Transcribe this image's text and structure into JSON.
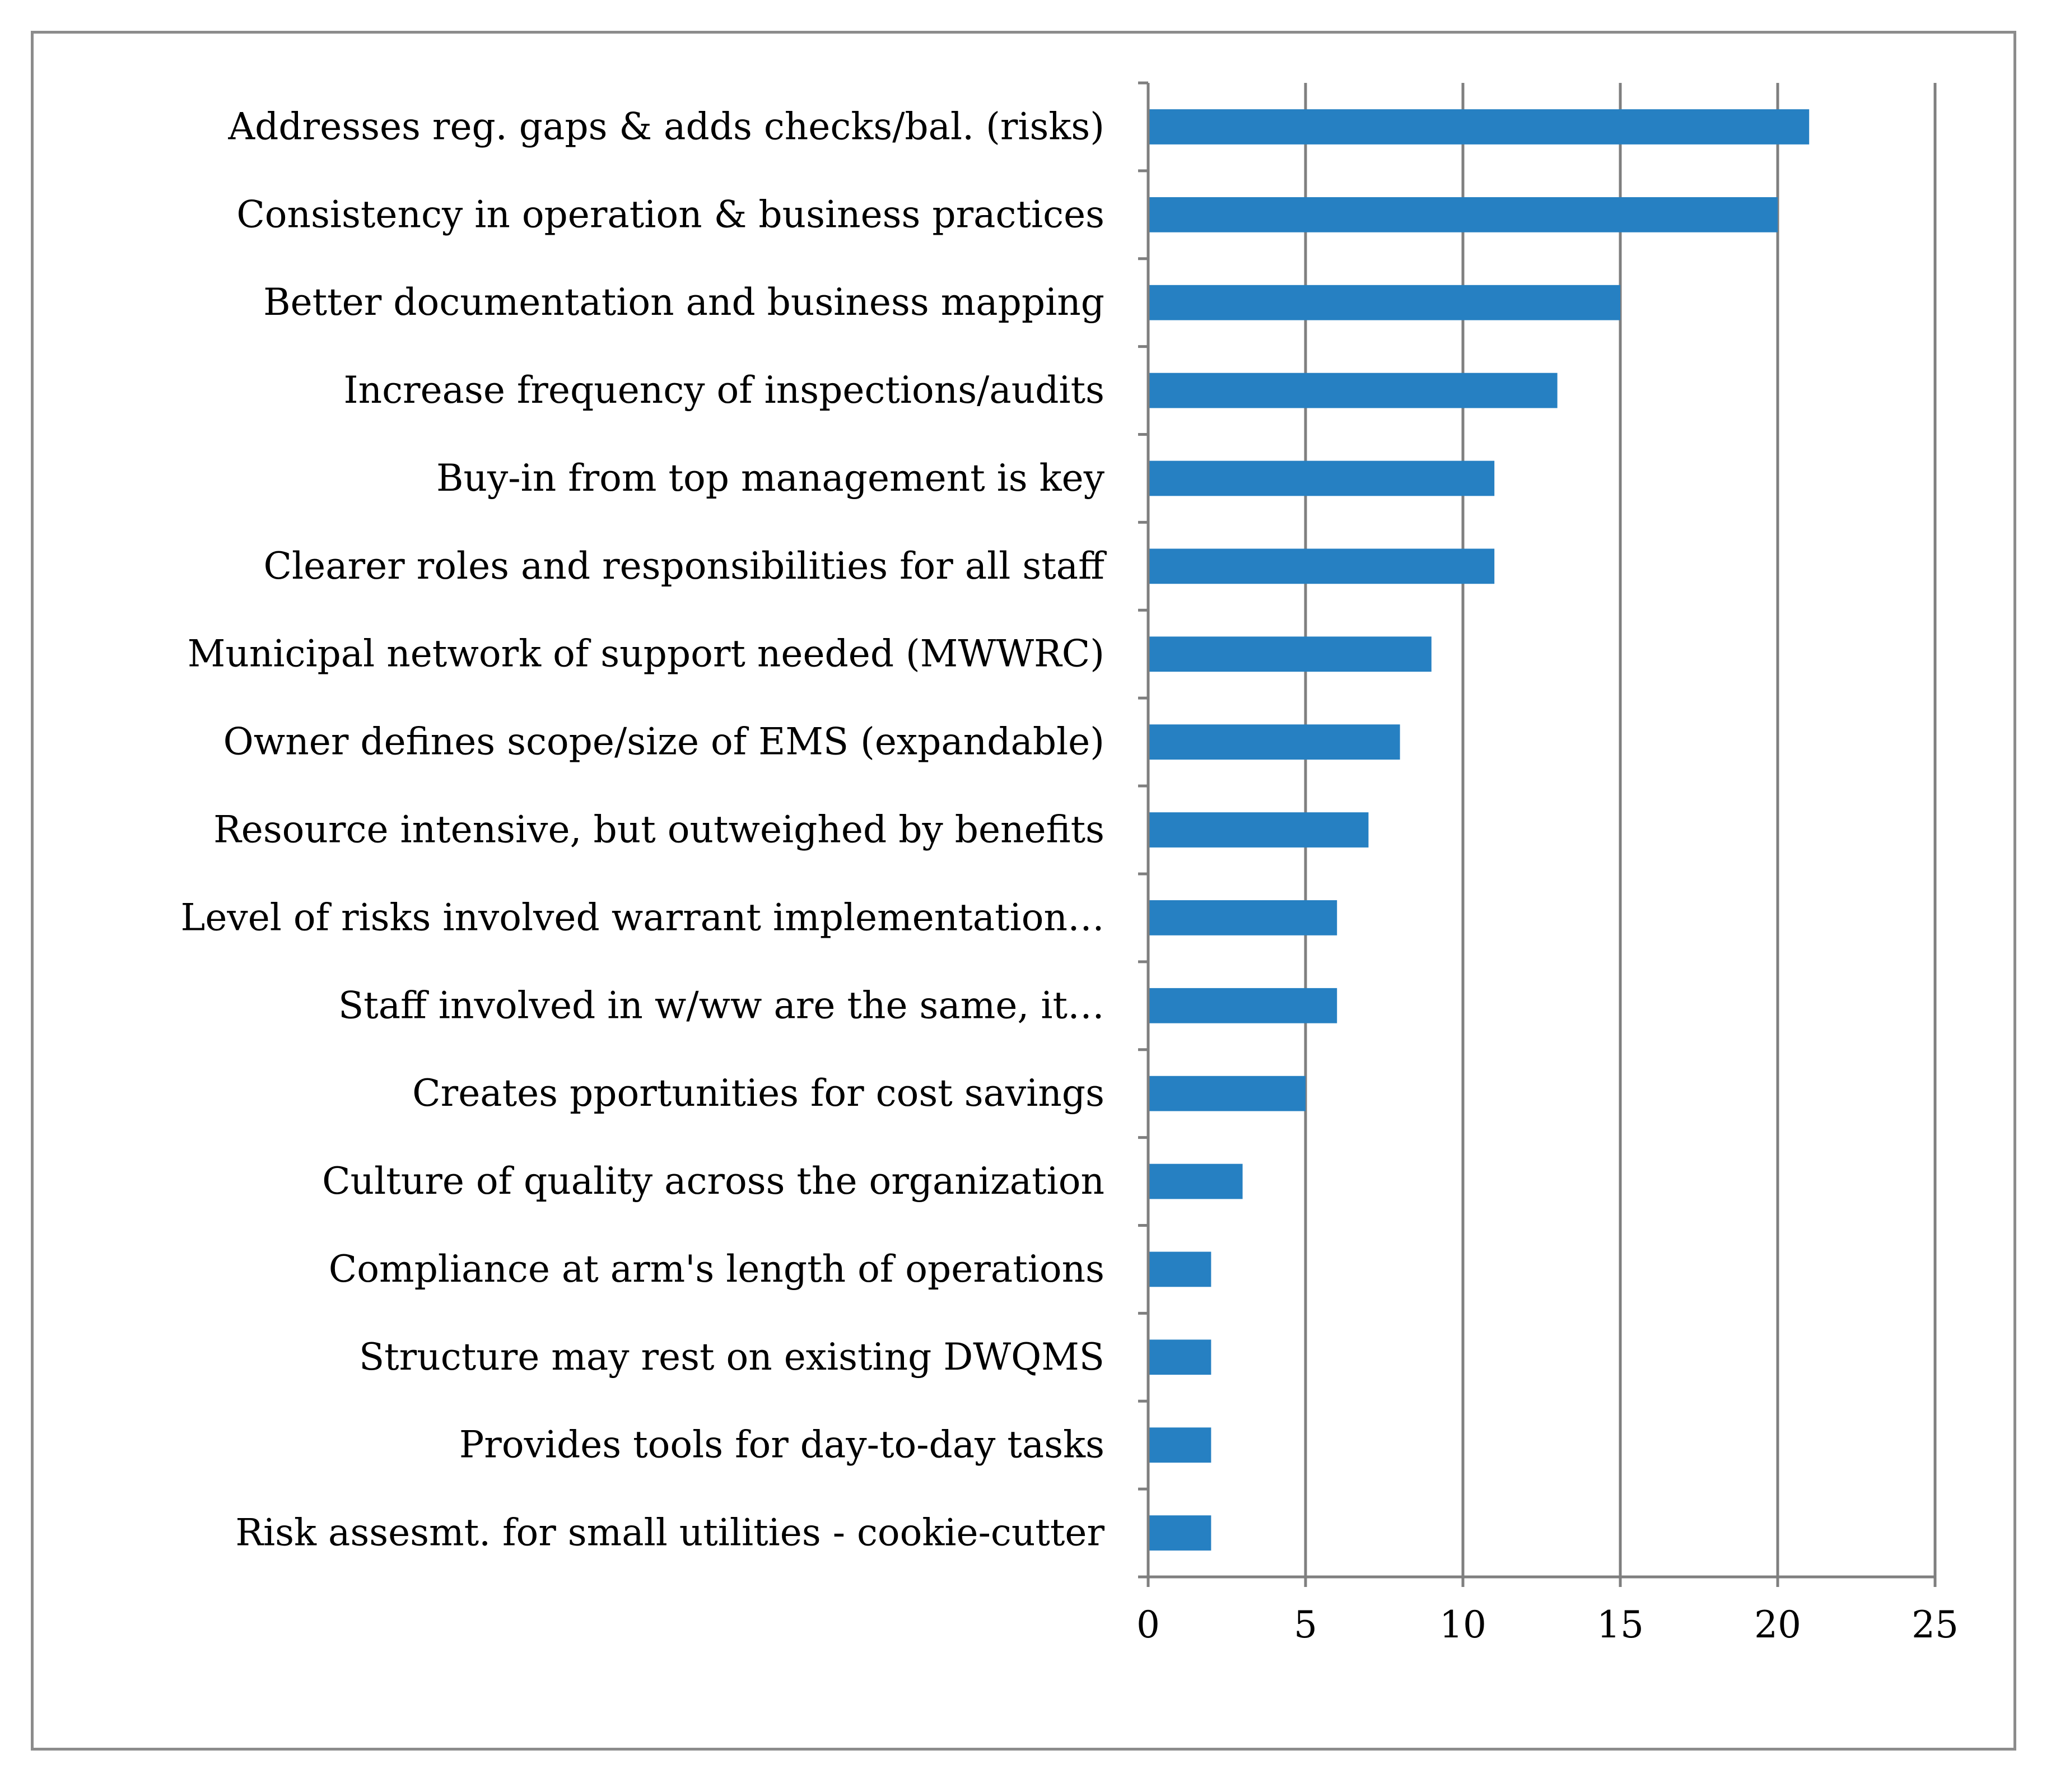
{
  "chart_data": {
    "type": "bar",
    "orientation": "horizontal",
    "title": "",
    "xlabel": "",
    "ylabel": "",
    "xlim": [
      0,
      25
    ],
    "x_ticks": [
      0,
      5,
      10,
      15,
      20,
      25
    ],
    "grid": "vertical",
    "legend": "none",
    "bar_color": "#2680c2",
    "grid_color": "#7f7f7f",
    "categories": [
      "Addresses reg. gaps & adds checks/bal. (risks)",
      "Consistency in operation & business practices",
      "Better documentation and business mapping",
      "Increase frequency of inspections/audits",
      "Buy-in from top management is key",
      "Clearer roles and responsibilities for all staff",
      "Municipal network of support needed (MWWRC)",
      "Owner defines scope/size of EMS (expandable)",
      "Resource intensive, but outweighed by benefits",
      "Level of risks involved warrant implementation…",
      "Staff involved in w/ww are the same, it…",
      "Creates pportunities for cost savings",
      "Culture of quality across the organization",
      "Compliance at arm's length of operations",
      "Structure may rest on existing DWQMS",
      "Provides tools for day-to-day tasks",
      "Risk assesmt. for small utilities - cookie-cutter"
    ],
    "values": [
      21,
      20,
      15,
      13,
      11,
      11,
      9,
      8,
      7,
      6,
      6,
      5,
      3,
      2,
      2,
      2,
      2
    ]
  }
}
